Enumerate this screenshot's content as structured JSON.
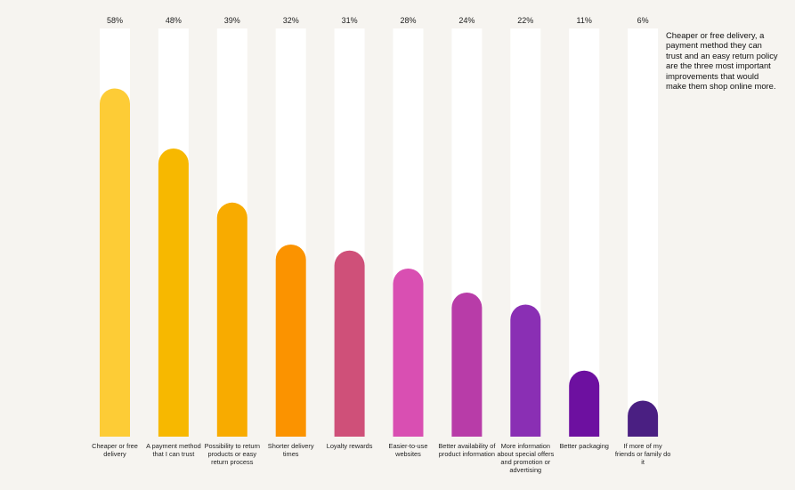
{
  "chart_data": {
    "type": "bar",
    "categories": [
      "Cheaper or free delivery",
      "A payment method that I can trust",
      "Possibility to return products or easy return process",
      "Shorter delivery times",
      "Loyalty rewards",
      "Easier-to-use websites",
      "Better availability of product information",
      "More information about special offers and promotion or advertising",
      "Better packaging",
      "If more of my friends or family do it"
    ],
    "values": [
      58,
      48,
      39,
      32,
      31,
      28,
      24,
      22,
      11,
      6
    ],
    "value_labels": [
      "58%",
      "48%",
      "39%",
      "32%",
      "31%",
      "28%",
      "24%",
      "22%",
      "11%",
      "6%"
    ],
    "colors": [
      "#fdcc36",
      "#f7b800",
      "#f8ab00",
      "#fb9300",
      "#cf5079",
      "#d94fb2",
      "#b83ca8",
      "#8a2fb4",
      "#6d10a0",
      "#4a1f82"
    ],
    "track_color": "#ffffff",
    "ylim": [
      0,
      68
    ],
    "grid": false,
    "title": "",
    "xlabel": "",
    "ylabel": ""
  },
  "annotation": {
    "text": "Cheaper or free delivery, a payment method they can trust and an easy return policy are the three most important improvements that would make them shop online more."
  }
}
